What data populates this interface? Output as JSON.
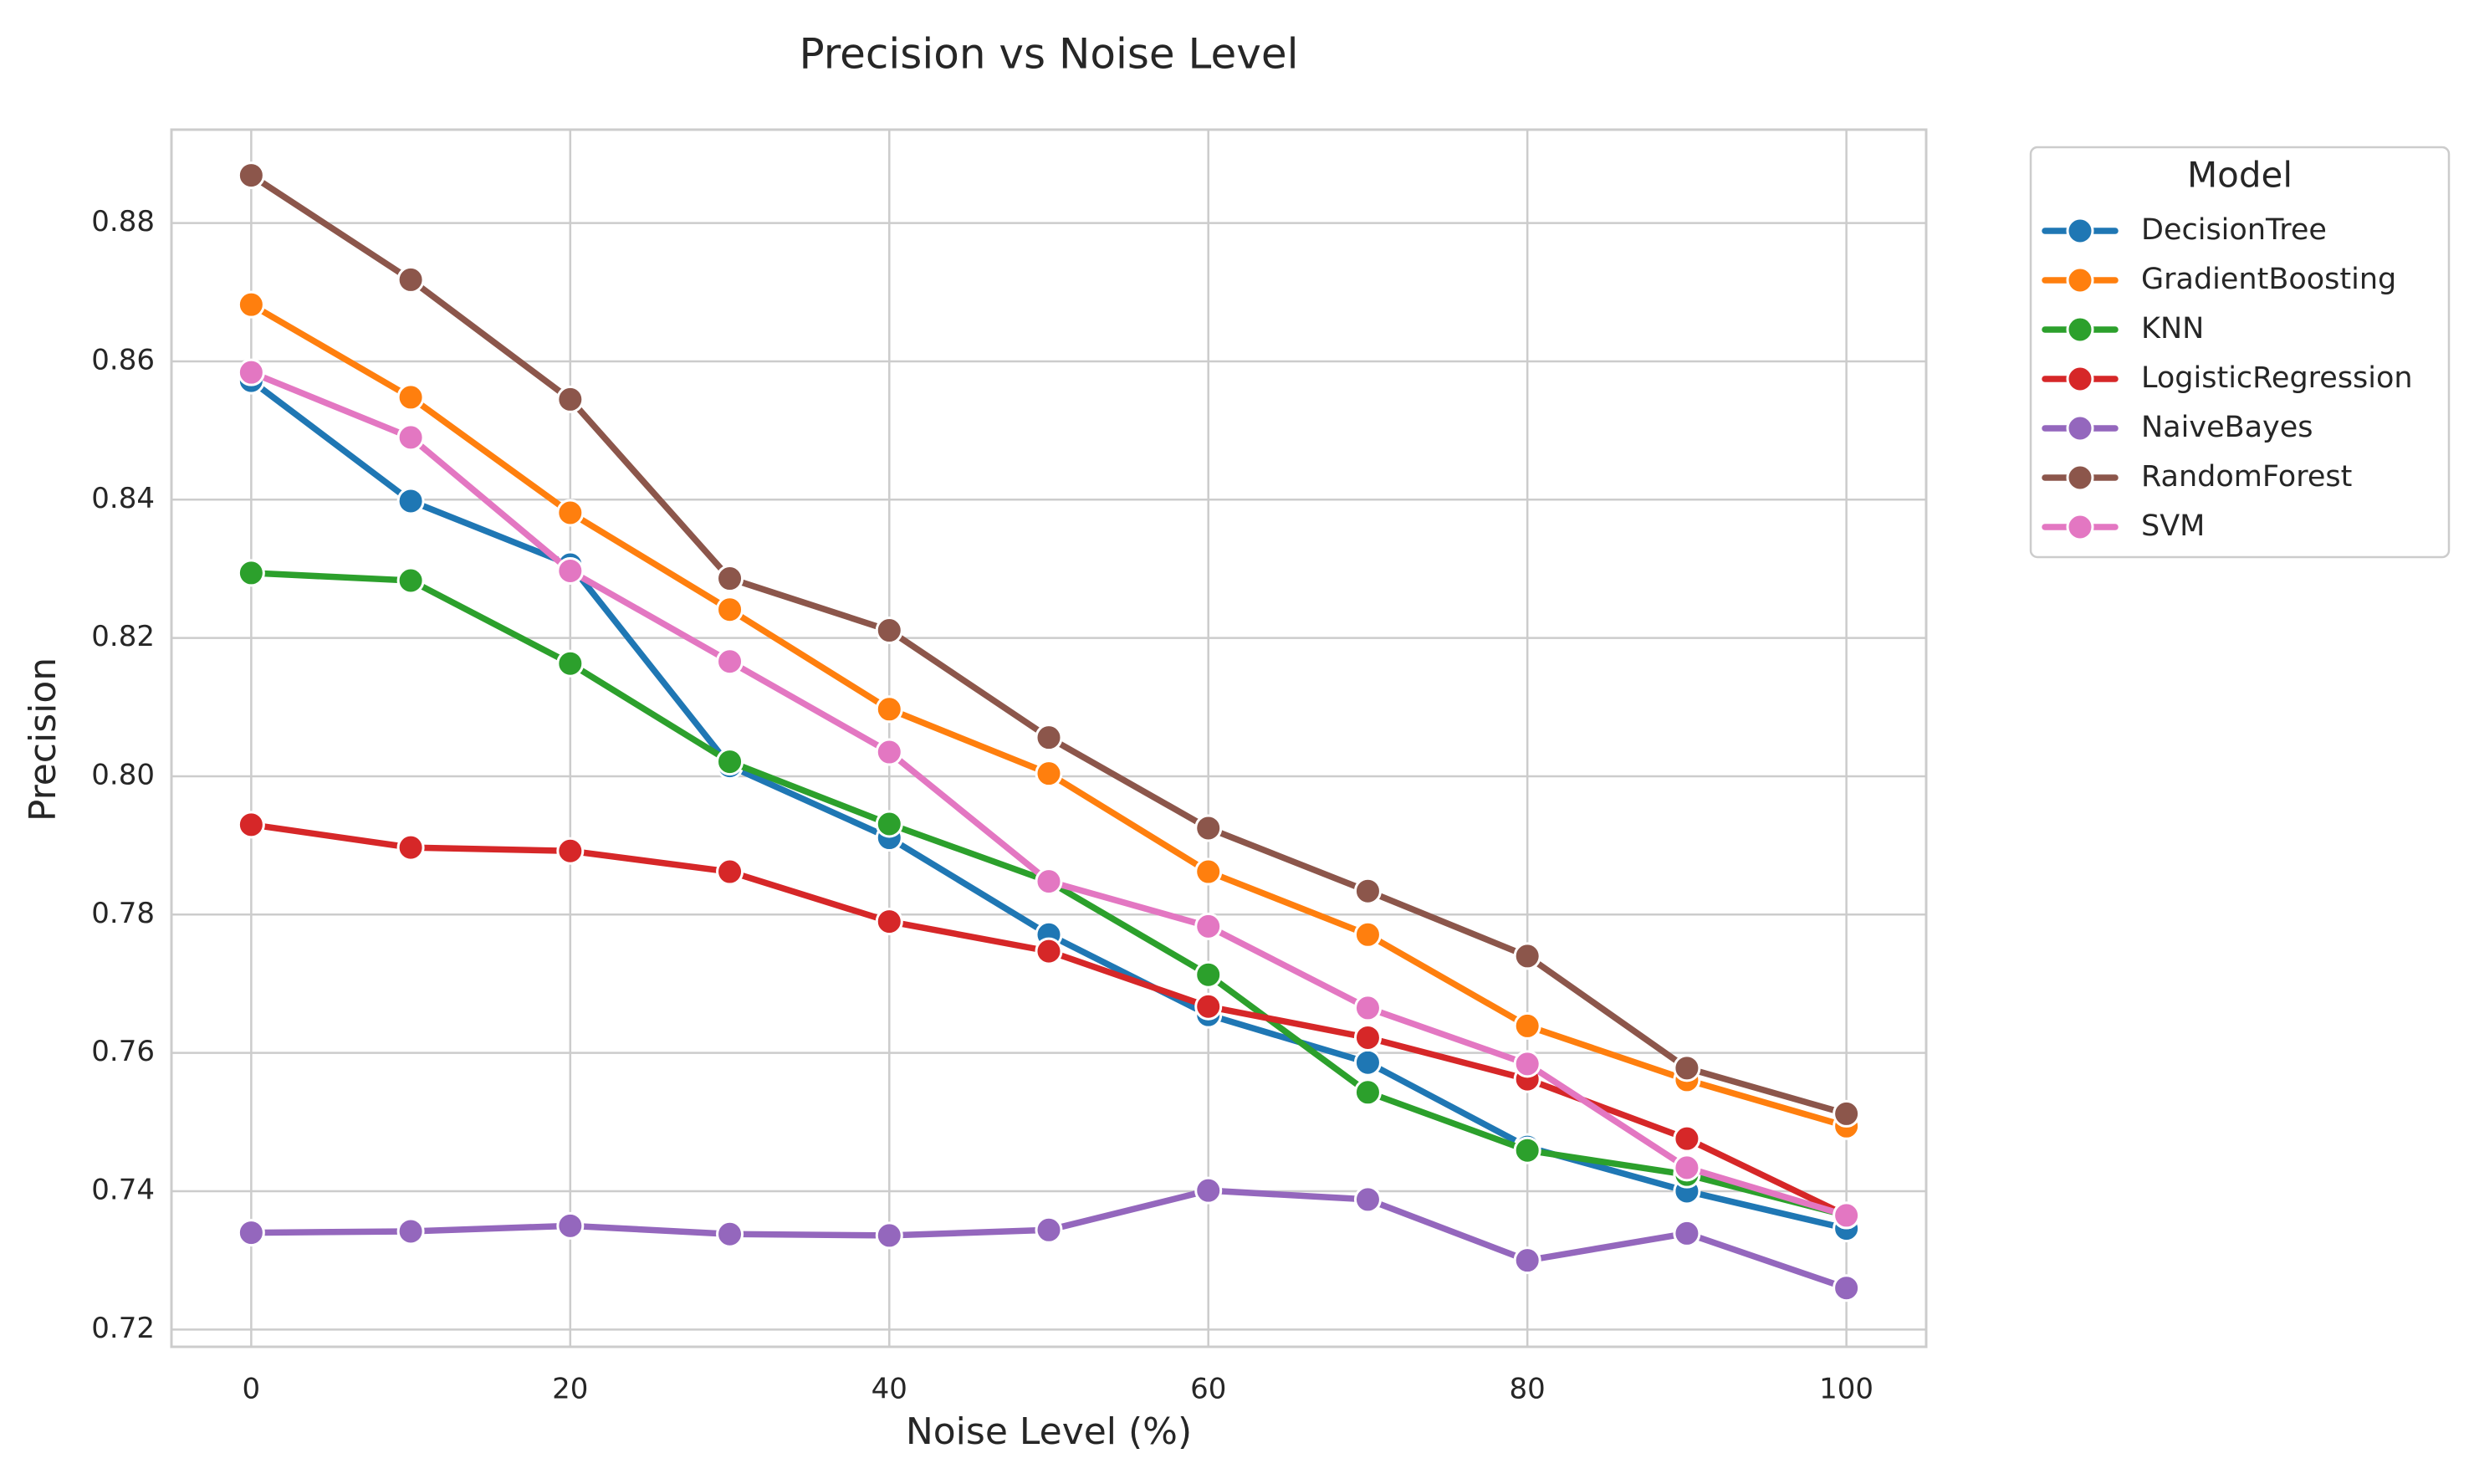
{
  "chart_data": {
    "type": "line",
    "title": "Precision vs Noise Level",
    "xlabel": "Noise Level (%)",
    "ylabel": "Precision",
    "xlim": [
      -5,
      105
    ],
    "ylim": [
      0.7175,
      0.8935
    ],
    "xticks": [
      0,
      20,
      40,
      60,
      80,
      100
    ],
    "xtick_labels": [
      "0",
      "20",
      "40",
      "60",
      "80",
      "100"
    ],
    "yticks": [
      0.72,
      0.74,
      0.76,
      0.78,
      0.8,
      0.82,
      0.84,
      0.86,
      0.88
    ],
    "ytick_labels": [
      "0.72",
      "0.74",
      "0.76",
      "0.78",
      "0.80",
      "0.82",
      "0.84",
      "0.86",
      "0.88"
    ],
    "grid": true,
    "legend": {
      "title": "Model",
      "placement": "outside upper right"
    },
    "x": [
      0,
      10,
      20,
      30,
      40,
      50,
      60,
      70,
      80,
      90,
      100
    ],
    "series": [
      {
        "name": "DecisionTree",
        "color": "#1f77b4",
        "values": [
          0.8572,
          0.8398,
          0.8306,
          0.8015,
          0.7911,
          0.7771,
          0.7655,
          0.7586,
          0.7464,
          0.74,
          0.7346
        ]
      },
      {
        "name": "GradientBoosting",
        "color": "#ff7f0e",
        "values": [
          0.8682,
          0.8548,
          0.8381,
          0.8241,
          0.8097,
          0.8004,
          0.7862,
          0.7771,
          0.7639,
          0.7561,
          0.7494
        ]
      },
      {
        "name": "KNN",
        "color": "#2ca02c",
        "values": [
          0.8294,
          0.8283,
          0.8163,
          0.8021,
          0.7931,
          0.7848,
          0.7713,
          0.7543,
          0.7459,
          0.7424,
          0.7365
        ]
      },
      {
        "name": "LogisticRegression",
        "color": "#d62728",
        "values": [
          0.793,
          0.7897,
          0.7892,
          0.7862,
          0.779,
          0.7747,
          0.7667,
          0.7622,
          0.7562,
          0.7476,
          0.7365
        ]
      },
      {
        "name": "NaiveBayes",
        "color": "#9467bd",
        "values": [
          0.734,
          0.7342,
          0.735,
          0.7338,
          0.7336,
          0.7344,
          0.7401,
          0.7388,
          0.73,
          0.7339,
          0.726
        ]
      },
      {
        "name": "RandomForest",
        "color": "#8c564b",
        "values": [
          0.8869,
          0.8718,
          0.8545,
          0.8286,
          0.8211,
          0.8056,
          0.7925,
          0.7834,
          0.774,
          0.7578,
          0.7512
        ]
      },
      {
        "name": "SVM",
        "color": "#e377c2",
        "values": [
          0.8584,
          0.849,
          0.8297,
          0.8166,
          0.8035,
          0.7848,
          0.7783,
          0.7665,
          0.7584,
          0.7434,
          0.7365
        ]
      }
    ]
  }
}
